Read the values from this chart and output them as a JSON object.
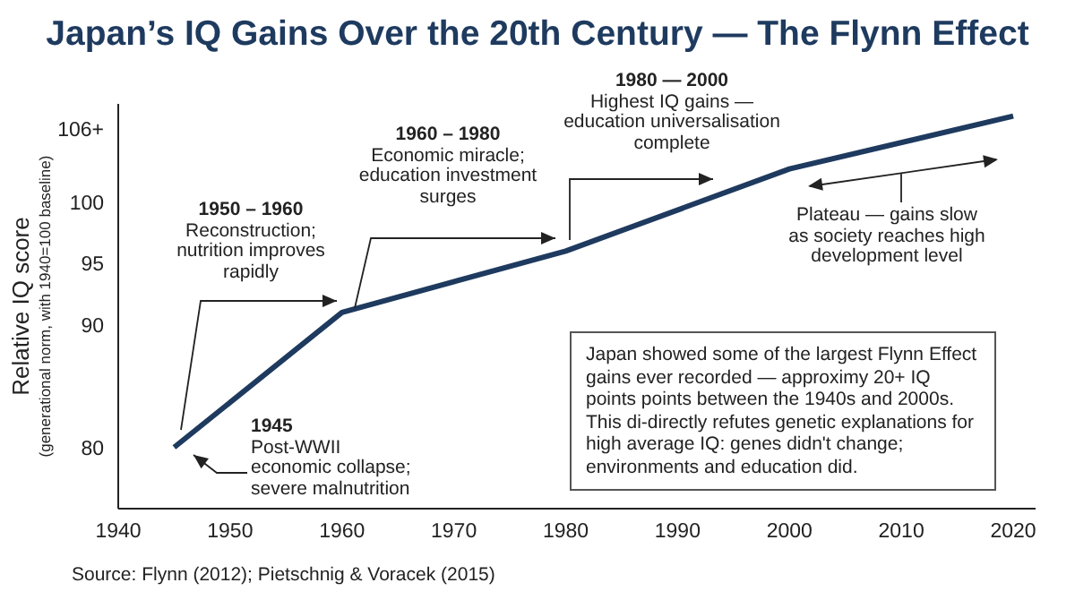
{
  "chart_data": {
    "type": "line",
    "title": "Japan’s IQ Gains Over the 20th Century — The Flynn Effect",
    "ylabel": "Relative IQ score\n(generational norm, with 1940=100 baseline)",
    "x": [
      1945,
      1960,
      1980,
      2000,
      2020
    ],
    "series": [
      {
        "color": "#1e3a5f",
        "values": [
          80,
          91,
          96,
          102.7,
          107
        ]
      }
    ],
    "xlim": [
      1940,
      2022
    ],
    "xticks": [
      1940,
      1950,
      1960,
      1970,
      1980,
      1990,
      2000,
      2010,
      2020
    ],
    "ylim": [
      75,
      108
    ],
    "yticks": [
      80,
      90,
      95,
      100,
      {
        "value": 106,
        "label": "106+"
      }
    ],
    "grid": false,
    "legend": false,
    "marker": "none",
    "line_style": "solid",
    "annotations": [
      "1945\nPost-WWII\neconomic collapse;\nsevere malnutrition",
      "1950 – 1960\nReconstruction;\nnutrition improves\nrapidly",
      "1960 – 1980\nEconomic miracle;\neducation investment\nsurges",
      "1980 — 2000\nHighest IQ gains —\neducation universalisation\ncomplete",
      "Plateau — gains slow\nas society reaches high\ndevelopment level",
      "Japan showed some of the largest Flynn Effect gains ever recorded — approximy 20+ IQ points points between the 1940s and 2000s. This di-directly refutes genetic explanations for high average IQ: genes didn't change; environments and education did.",
      "Source: Flynn (2012); Pietschnig & Voracek (2015)"
    ]
  }
}
